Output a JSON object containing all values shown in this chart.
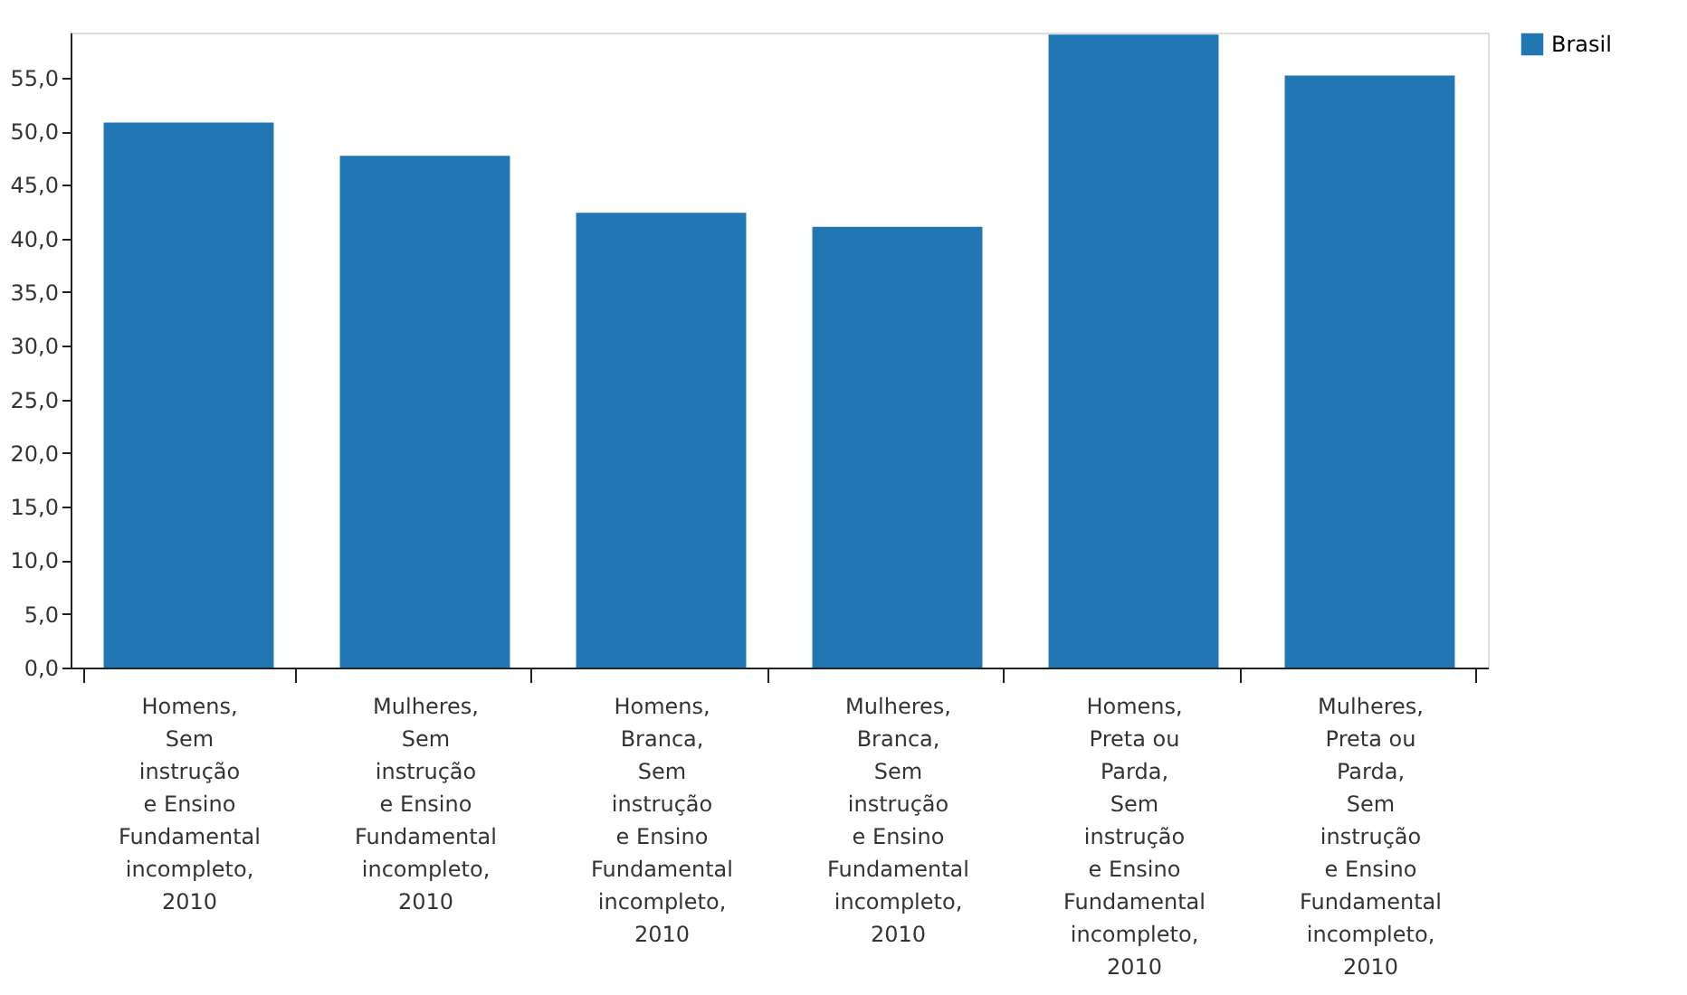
{
  "chart_data": {
    "type": "bar",
    "categories": [
      "Homens,\nSem\ninstrução\ne Ensino\nFundamental\nincompleto,\n2010",
      "Mulheres,\nSem\ninstrução\ne Ensino\nFundamental\nincompleto,\n2010",
      "Homens,\nBranca,\nSem\ninstrução\ne Ensino\nFundamental\nincompleto,\n2010",
      "Mulheres,\nBranca,\nSem\ninstrução\ne Ensino\nFundamental\nincompleto,\n2010",
      "Homens,\nPreta ou\nParda,\nSem\ninstrução\ne Ensino\nFundamental\nincompleto,\n2010",
      "Mulheres,\nPreta ou\nParda,\nSem\ninstrução\ne Ensino\nFundamental\nincompleto,\n2010"
    ],
    "series": [
      {
        "name": "Brasil",
        "color": "#2077b4",
        "values": [
          50.8,
          47.7,
          42.4,
          41.1,
          59.0,
          55.2
        ]
      }
    ],
    "ylim": [
      0,
      59.2
    ],
    "yticks": [
      {
        "value": 0,
        "label": "0,0"
      },
      {
        "value": 5,
        "label": "5,0"
      },
      {
        "value": 10,
        "label": "10,0"
      },
      {
        "value": 15,
        "label": "15,0"
      },
      {
        "value": 20,
        "label": "20,0"
      },
      {
        "value": 25,
        "label": "25,0"
      },
      {
        "value": 30,
        "label": "30,0"
      },
      {
        "value": 35,
        "label": "35,0"
      },
      {
        "value": 40,
        "label": "40,0"
      },
      {
        "value": 45,
        "label": "45,0"
      },
      {
        "value": 50,
        "label": "50,0"
      },
      {
        "value": 55,
        "label": "55,0"
      }
    ],
    "grid": false,
    "legend": "right"
  }
}
